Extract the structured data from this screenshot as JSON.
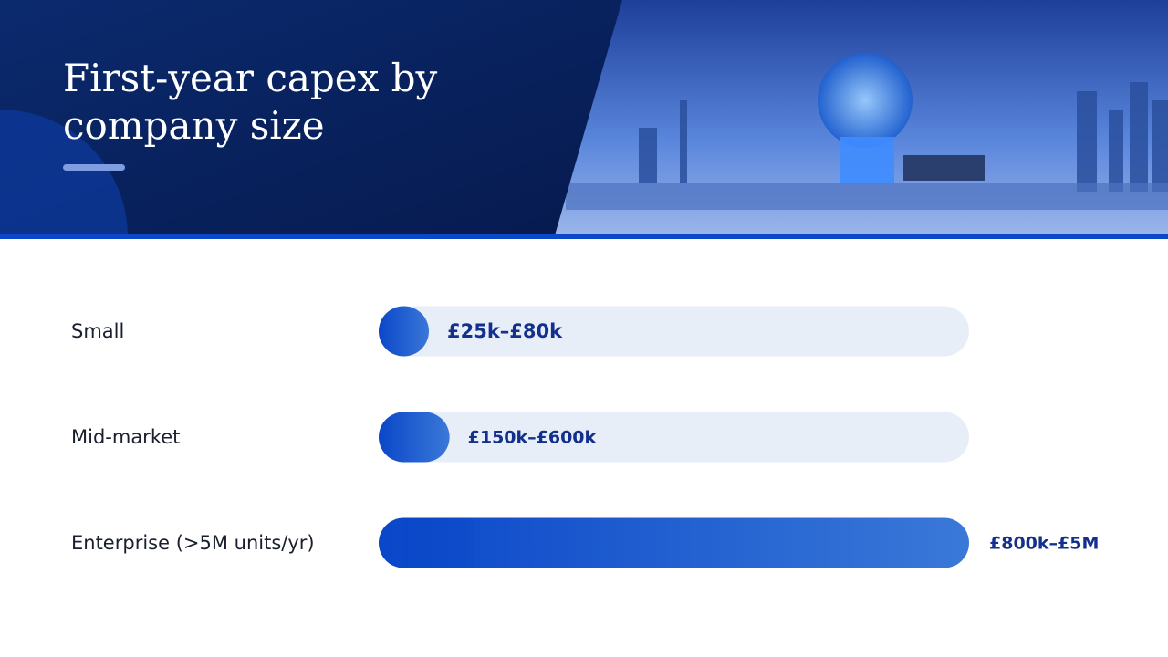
{
  "header": {
    "title": "First-year capex by company size"
  },
  "chart_data": {
    "type": "range-bar",
    "categories": [
      "Small",
      "Mid-market",
      "Enterprise (>5M units/yr)"
    ],
    "values": [
      [
        25000,
        80000
      ],
      [
        150000,
        600000
      ],
      [
        800000,
        5000000
      ]
    ],
    "value_labels": [
      "£25k–£80k",
      "£150k–£600k",
      "£800k–£5M"
    ],
    "xlim": [
      0,
      5000000
    ],
    "color": "#0a47c9"
  }
}
